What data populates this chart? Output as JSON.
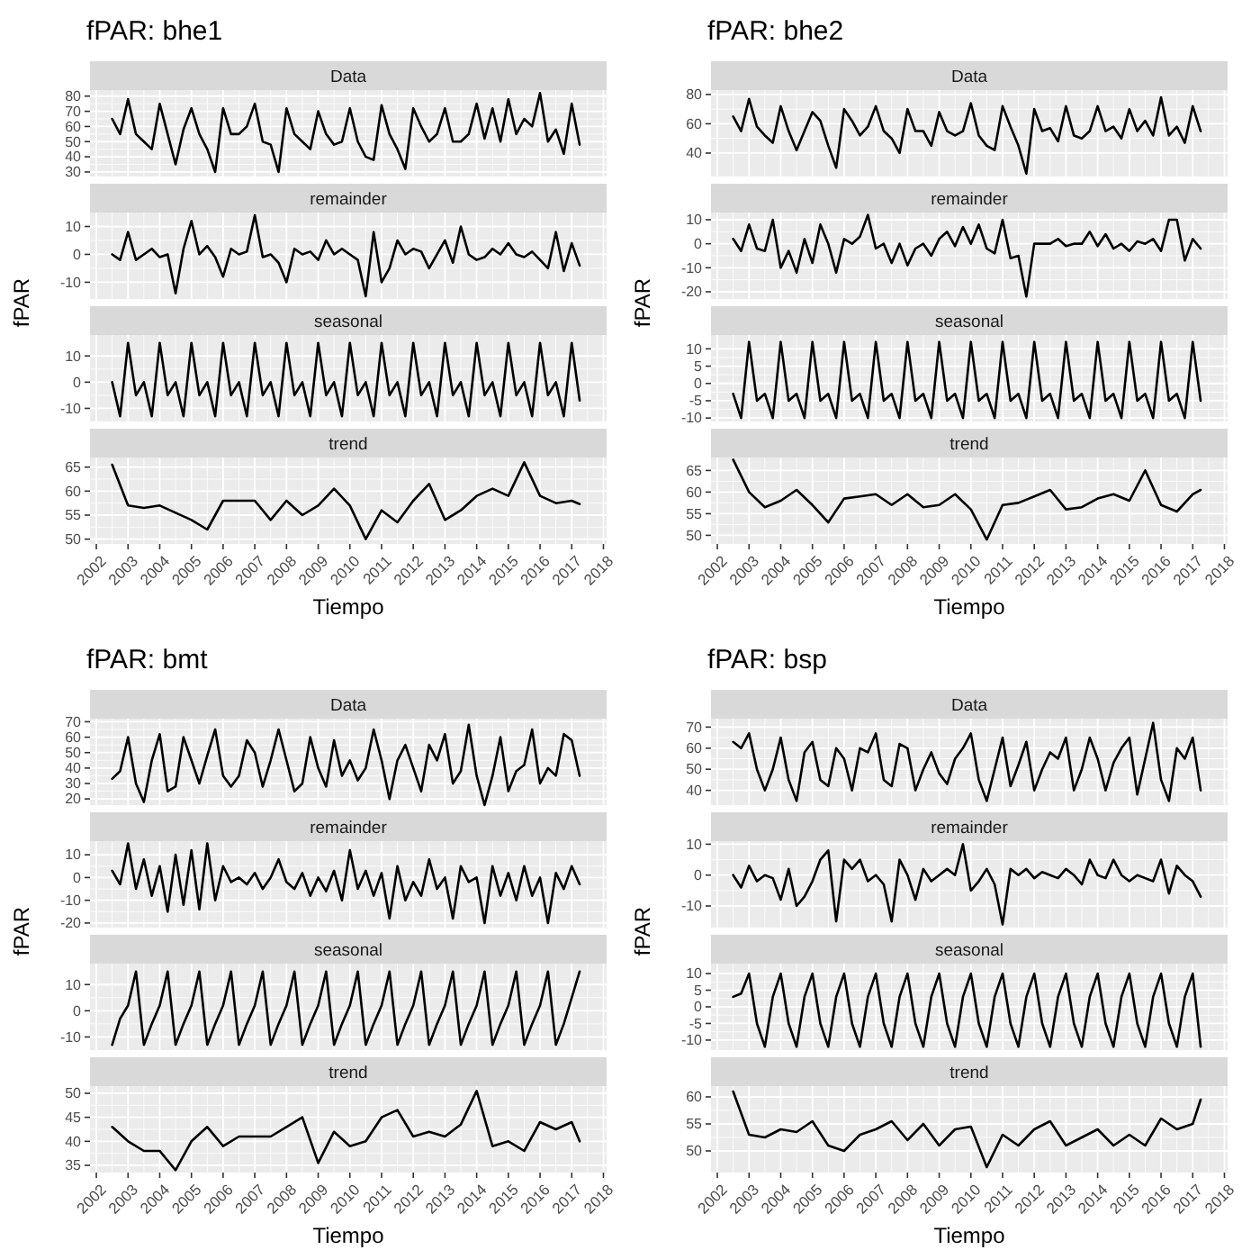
{
  "chart_data": [
    {
      "type": "line",
      "title": "fPAR: bhe1",
      "subtitle": "Data",
      "tick_labels": "y",
      "grid": true,
      "xlim": [
        2001.8,
        2018.1
      ],
      "xticks": [
        2002,
        2003,
        2004,
        2005,
        2006,
        2007,
        2008,
        2009,
        2010,
        2011,
        2012,
        2013,
        2014,
        2015,
        2016,
        2017,
        2018
      ],
      "ylim": [
        27,
        84
      ],
      "yticks": [
        30,
        40,
        50,
        60,
        70,
        80
      ],
      "x": [
        2002.5,
        2002.75,
        2003,
        2003.25,
        2003.5,
        2003.75,
        2004,
        2004.25,
        2004.5,
        2004.75,
        2005,
        2005.25,
        2005.5,
        2005.75,
        2006,
        2006.25,
        2006.5,
        2006.75,
        2007,
        2007.25,
        2007.5,
        2007.75,
        2008,
        2008.25,
        2008.5,
        2008.75,
        2009,
        2009.25,
        2009.5,
        2009.75,
        2010,
        2010.25,
        2010.5,
        2010.75,
        2011,
        2011.25,
        2011.5,
        2011.75,
        2012,
        2012.25,
        2012.5,
        2012.75,
        2013,
        2013.25,
        2013.5,
        2013.75,
        2014,
        2014.25,
        2014.5,
        2014.75,
        2015,
        2015.25,
        2015.5,
        2015.75,
        2016,
        2016.25,
        2016.5,
        2016.75,
        2017,
        2017.25
      ],
      "series": [
        {
          "color": "#000000",
          "values": [
            65,
            55,
            78,
            55,
            50,
            45,
            75,
            55,
            35,
            58,
            72,
            55,
            45,
            30,
            72,
            55,
            55,
            60,
            75,
            50,
            48,
            30,
            72,
            55,
            50,
            45,
            70,
            55,
            48,
            50,
            72,
            50,
            40,
            38,
            74,
            55,
            45,
            32,
            72,
            60,
            50,
            55,
            72,
            50,
            50,
            55,
            75,
            52,
            72,
            50,
            78,
            55,
            65,
            60,
            82,
            50,
            58,
            42,
            75,
            48
          ]
        }
      ]
    },
    {
      "type": "line",
      "subtitle": "remainder",
      "ylabel": "fPAR",
      "tick_labels": "y",
      "grid": true,
      "xlim": [
        2001.8,
        2018.1
      ],
      "xticks": [
        2002,
        2003,
        2004,
        2005,
        2006,
        2007,
        2008,
        2009,
        2010,
        2011,
        2012,
        2013,
        2014,
        2015,
        2016,
        2017,
        2018
      ],
      "ylim": [
        -16,
        15
      ],
      "yticks": [
        -10,
        0,
        10
      ],
      "x": [
        2002.5,
        2002.75,
        2003,
        2003.25,
        2003.5,
        2003.75,
        2004,
        2004.25,
        2004.5,
        2004.75,
        2005,
        2005.25,
        2005.5,
        2005.75,
        2006,
        2006.25,
        2006.5,
        2006.75,
        2007,
        2007.25,
        2007.5,
        2007.75,
        2008,
        2008.25,
        2008.5,
        2008.75,
        2009,
        2009.25,
        2009.5,
        2009.75,
        2010,
        2010.25,
        2010.5,
        2010.75,
        2011,
        2011.25,
        2011.5,
        2011.75,
        2012,
        2012.25,
        2012.5,
        2012.75,
        2013,
        2013.25,
        2013.5,
        2013.75,
        2014,
        2014.25,
        2014.5,
        2014.75,
        2015,
        2015.25,
        2015.5,
        2015.75,
        2016,
        2016.25,
        2016.5,
        2016.75,
        2017,
        2017.25
      ],
      "series": [
        {
          "color": "#000000",
          "values": [
            0,
            -2,
            8,
            -2,
            0,
            2,
            -1,
            0,
            -14,
            2,
            12,
            0,
            3,
            -1,
            -8,
            2,
            0,
            1,
            14,
            -1,
            0,
            -3,
            -10,
            2,
            0,
            1,
            -2,
            5,
            0,
            2,
            0,
            -2,
            -15,
            8,
            -10,
            -5,
            5,
            0,
            2,
            1,
            -5,
            0,
            5,
            -3,
            10,
            0,
            -2,
            -1,
            2,
            0,
            4,
            0,
            -1,
            1,
            -2,
            -5,
            8,
            -6,
            4,
            -4
          ]
        }
      ]
    },
    {
      "type": "line",
      "subtitle": "seasonal",
      "tick_labels": "y",
      "grid": true,
      "xlim": [
        2001.8,
        2018.1
      ],
      "xticks": [
        2002,
        2003,
        2004,
        2005,
        2006,
        2007,
        2008,
        2009,
        2010,
        2011,
        2012,
        2013,
        2014,
        2015,
        2016,
        2017,
        2018
      ],
      "ylim": [
        -15,
        18
      ],
      "yticks": [
        -10,
        0,
        10
      ],
      "x": [
        2002.5,
        2002.75,
        2003,
        2003.25,
        2003.5,
        2003.75,
        2004,
        2004.25,
        2004.5,
        2004.75,
        2005,
        2005.25,
        2005.5,
        2005.75,
        2006,
        2006.25,
        2006.5,
        2006.75,
        2007,
        2007.25,
        2007.5,
        2007.75,
        2008,
        2008.25,
        2008.5,
        2008.75,
        2009,
        2009.25,
        2009.5,
        2009.75,
        2010,
        2010.25,
        2010.5,
        2010.75,
        2011,
        2011.25,
        2011.5,
        2011.75,
        2012,
        2012.25,
        2012.5,
        2012.75,
        2013,
        2013.25,
        2013.5,
        2013.75,
        2014,
        2014.25,
        2014.5,
        2014.75,
        2015,
        2015.25,
        2015.5,
        2015.75,
        2016,
        2016.25,
        2016.5,
        2016.75,
        2017,
        2017.25
      ],
      "series": [
        {
          "color": "#000000",
          "values": [
            0,
            -13,
            15,
            -5,
            0,
            -13,
            15,
            -5,
            0,
            -13,
            15,
            -5,
            0,
            -13,
            15,
            -5,
            0,
            -13,
            15,
            -5,
            0,
            -13,
            15,
            -5,
            0,
            -13,
            15,
            -5,
            0,
            -13,
            15,
            -5,
            0,
            -13,
            15,
            -5,
            0,
            -13,
            15,
            -5,
            0,
            -13,
            15,
            -5,
            0,
            -13,
            15,
            -5,
            0,
            -13,
            15,
            -5,
            0,
            -13,
            15,
            -5,
            0,
            -13,
            15,
            -7
          ]
        }
      ]
    },
    {
      "type": "line",
      "subtitle": "trend",
      "xlabel": "Tiempo",
      "grid": true,
      "xlim": [
        2001.8,
        2018.1
      ],
      "xticks": [
        2002,
        2003,
        2004,
        2005,
        2006,
        2007,
        2008,
        2009,
        2010,
        2011,
        2012,
        2013,
        2014,
        2015,
        2016,
        2017,
        2018
      ],
      "ylim": [
        49,
        67
      ],
      "yticks": [
        50,
        55,
        60,
        65
      ],
      "x": [
        2002.5,
        2003,
        2003.5,
        2004,
        2004.5,
        2005,
        2005.5,
        2006,
        2006.5,
        2007,
        2007.5,
        2008,
        2008.5,
        2009,
        2009.5,
        2010,
        2010.5,
        2011,
        2011.5,
        2012,
        2012.5,
        2013,
        2013.5,
        2014,
        2014.5,
        2015,
        2015.5,
        2016,
        2016.5,
        2017,
        2017.25
      ],
      "series": [
        {
          "color": "#000000",
          "values": [
            65.5,
            57,
            56.5,
            57,
            55.5,
            54,
            52,
            58,
            58,
            58,
            54,
            58,
            55,
            57,
            60.5,
            57,
            50,
            56,
            53.5,
            58,
            61.5,
            54,
            56,
            59,
            60.5,
            59,
            66,
            59,
            57.5,
            58,
            57.3
          ]
        }
      ]
    },
    {
      "type": "line",
      "title": "fPAR: bhe2",
      "subtitle": "Data",
      "tick_labels": "y",
      "grid": true,
      "xlim": [
        2001.8,
        2018.1
      ],
      "xticks": [
        2002,
        2003,
        2004,
        2005,
        2006,
        2007,
        2008,
        2009,
        2010,
        2011,
        2012,
        2013,
        2014,
        2015,
        2016,
        2017,
        2018
      ],
      "ylim": [
        24,
        83
      ],
      "yticks": [
        40,
        60,
        80
      ],
      "x": [
        2002.5,
        2002.75,
        2003,
        2003.25,
        2003.5,
        2003.75,
        2004,
        2004.25,
        2004.5,
        2004.75,
        2005,
        2005.25,
        2005.5,
        2005.75,
        2006,
        2006.25,
        2006.5,
        2006.75,
        2007,
        2007.25,
        2007.5,
        2007.75,
        2008,
        2008.25,
        2008.5,
        2008.75,
        2009,
        2009.25,
        2009.5,
        2009.75,
        2010,
        2010.25,
        2010.5,
        2010.75,
        2011,
        2011.25,
        2011.5,
        2011.75,
        2012,
        2012.25,
        2012.5,
        2012.75,
        2013,
        2013.25,
        2013.5,
        2013.75,
        2014,
        2014.25,
        2014.5,
        2014.75,
        2015,
        2015.25,
        2015.5,
        2015.75,
        2016,
        2016.25,
        2016.5,
        2016.75,
        2017,
        2017.25
      ],
      "series": [
        {
          "color": "#000000",
          "values": [
            65,
            55,
            77,
            58,
            52,
            47,
            72,
            55,
            42,
            55,
            68,
            62,
            45,
            30,
            70,
            62,
            52,
            58,
            72,
            55,
            50,
            40,
            70,
            55,
            55,
            45,
            68,
            55,
            52,
            55,
            74,
            52,
            45,
            42,
            72,
            58,
            45,
            26,
            70,
            55,
            57,
            48,
            72,
            52,
            50,
            55,
            72,
            55,
            58,
            50,
            70,
            55,
            62,
            52,
            78,
            52,
            58,
            47,
            72,
            55
          ]
        }
      ]
    },
    {
      "type": "line",
      "subtitle": "remainder",
      "ylabel": "fPAR",
      "tick_labels": "y",
      "grid": true,
      "xlim": [
        2001.8,
        2018.1
      ],
      "xticks": [
        2002,
        2003,
        2004,
        2005,
        2006,
        2007,
        2008,
        2009,
        2010,
        2011,
        2012,
        2013,
        2014,
        2015,
        2016,
        2017,
        2018
      ],
      "ylim": [
        -23,
        13
      ],
      "yticks": [
        -20,
        -10,
        0,
        10
      ],
      "x": [
        2002.5,
        2002.75,
        2003,
        2003.25,
        2003.5,
        2003.75,
        2004,
        2004.25,
        2004.5,
        2004.75,
        2005,
        2005.25,
        2005.5,
        2005.75,
        2006,
        2006.25,
        2006.5,
        2006.75,
        2007,
        2007.25,
        2007.5,
        2007.75,
        2008,
        2008.25,
        2008.5,
        2008.75,
        2009,
        2009.25,
        2009.5,
        2009.75,
        2010,
        2010.25,
        2010.5,
        2010.75,
        2011,
        2011.25,
        2011.5,
        2011.75,
        2012,
        2012.25,
        2012.5,
        2012.75,
        2013,
        2013.25,
        2013.5,
        2013.75,
        2014,
        2014.25,
        2014.5,
        2014.75,
        2015,
        2015.25,
        2015.5,
        2015.75,
        2016,
        2016.25,
        2016.5,
        2016.75,
        2017,
        2017.25
      ],
      "series": [
        {
          "color": "#000000",
          "values": [
            2,
            -3,
            8,
            -2,
            -3,
            10,
            -10,
            -3,
            -12,
            2,
            -8,
            8,
            0,
            -12,
            2,
            0,
            3,
            12,
            -2,
            0,
            -8,
            0,
            -9,
            -2,
            0,
            -5,
            2,
            5,
            -1,
            7,
            0,
            8,
            -2,
            -4,
            10,
            -6,
            -5,
            -22,
            0,
            0,
            0,
            2,
            -1,
            0,
            0,
            5,
            -1,
            4,
            -2,
            0,
            -3,
            1,
            0,
            2,
            -3,
            10,
            10,
            -7,
            2,
            -2
          ]
        }
      ]
    },
    {
      "type": "line",
      "subtitle": "seasonal",
      "tick_labels": "y",
      "grid": true,
      "xlim": [
        2001.8,
        2018.1
      ],
      "xticks": [
        2002,
        2003,
        2004,
        2005,
        2006,
        2007,
        2008,
        2009,
        2010,
        2011,
        2012,
        2013,
        2014,
        2015,
        2016,
        2017,
        2018
      ],
      "ylim": [
        -11,
        14
      ],
      "yticks": [
        -10,
        -5,
        0,
        5,
        10
      ],
      "x": [
        2002.5,
        2002.75,
        2003,
        2003.25,
        2003.5,
        2003.75,
        2004,
        2004.25,
        2004.5,
        2004.75,
        2005,
        2005.25,
        2005.5,
        2005.75,
        2006,
        2006.25,
        2006.5,
        2006.75,
        2007,
        2007.25,
        2007.5,
        2007.75,
        2008,
        2008.25,
        2008.5,
        2008.75,
        2009,
        2009.25,
        2009.5,
        2009.75,
        2010,
        2010.25,
        2010.5,
        2010.75,
        2011,
        2011.25,
        2011.5,
        2011.75,
        2012,
        2012.25,
        2012.5,
        2012.75,
        2013,
        2013.25,
        2013.5,
        2013.75,
        2014,
        2014.25,
        2014.5,
        2014.75,
        2015,
        2015.25,
        2015.5,
        2015.75,
        2016,
        2016.25,
        2016.5,
        2016.75,
        2017,
        2017.25
      ],
      "series": [
        {
          "color": "#000000",
          "values": [
            -3,
            -10,
            12,
            -5,
            -3,
            -10,
            12,
            -5,
            -3,
            -10,
            12,
            -5,
            -3,
            -10,
            12,
            -5,
            -3,
            -10,
            12,
            -5,
            -3,
            -10,
            12,
            -5,
            -3,
            -10,
            12,
            -5,
            -3,
            -10,
            12,
            -5,
            -3,
            -10,
            12,
            -5,
            -3,
            -10,
            12,
            -5,
            -3,
            -10,
            12,
            -5,
            -3,
            -10,
            12,
            -5,
            -3,
            -10,
            12,
            -5,
            -3,
            -10,
            12,
            -5,
            -3,
            -10,
            12,
            -5
          ]
        }
      ]
    },
    {
      "type": "line",
      "subtitle": "trend",
      "xlabel": "Tiempo",
      "grid": true,
      "xlim": [
        2001.8,
        2018.1
      ],
      "xticks": [
        2002,
        2003,
        2004,
        2005,
        2006,
        2007,
        2008,
        2009,
        2010,
        2011,
        2012,
        2013,
        2014,
        2015,
        2016,
        2017,
        2018
      ],
      "ylim": [
        48,
        68
      ],
      "yticks": [
        50,
        55,
        60,
        65
      ],
      "x": [
        2002.5,
        2003,
        2003.5,
        2004,
        2004.5,
        2005,
        2005.5,
        2006,
        2006.5,
        2007,
        2007.5,
        2008,
        2008.5,
        2009,
        2009.5,
        2010,
        2010.5,
        2011,
        2011.5,
        2012,
        2012.5,
        2013,
        2013.5,
        2014,
        2014.5,
        2015,
        2015.5,
        2016,
        2016.5,
        2017,
        2017.25
      ],
      "series": [
        {
          "color": "#000000",
          "values": [
            67.5,
            60,
            56.5,
            58,
            60.5,
            57,
            53,
            58.5,
            59,
            59.5,
            57,
            59.5,
            56.5,
            57,
            59.5,
            56,
            49,
            57,
            57.5,
            59,
            60.5,
            56,
            56.5,
            58.5,
            59.5,
            58,
            65,
            57,
            55.5,
            59.5,
            60.5
          ]
        }
      ]
    },
    {
      "type": "line",
      "title": "fPAR: bmt",
      "subtitle": "Data",
      "tick_labels": "y",
      "grid": true,
      "xlim": [
        2001.8,
        2018.1
      ],
      "xticks": [
        2002,
        2003,
        2004,
        2005,
        2006,
        2007,
        2008,
        2009,
        2010,
        2011,
        2012,
        2013,
        2014,
        2015,
        2016,
        2017,
        2018
      ],
      "ylim": [
        16,
        72
      ],
      "yticks": [
        20,
        30,
        40,
        50,
        60,
        70
      ],
      "x": [
        2002.5,
        2002.75,
        2003,
        2003.25,
        2003.5,
        2003.75,
        2004,
        2004.25,
        2004.5,
        2004.75,
        2005,
        2005.25,
        2005.5,
        2005.75,
        2006,
        2006.25,
        2006.5,
        2006.75,
        2007,
        2007.25,
        2007.5,
        2007.75,
        2008,
        2008.25,
        2008.5,
        2008.75,
        2009,
        2009.25,
        2009.5,
        2009.75,
        2010,
        2010.25,
        2010.5,
        2010.75,
        2011,
        2011.25,
        2011.5,
        2011.75,
        2012,
        2012.25,
        2012.5,
        2012.75,
        2013,
        2013.25,
        2013.5,
        2013.75,
        2014,
        2014.25,
        2014.5,
        2014.75,
        2015,
        2015.25,
        2015.5,
        2015.75,
        2016,
        2016.25,
        2016.5,
        2016.75,
        2017,
        2017.25
      ],
      "series": [
        {
          "color": "#000000",
          "values": [
            33,
            38,
            60,
            30,
            18,
            45,
            62,
            25,
            28,
            60,
            45,
            30,
            48,
            65,
            35,
            28,
            35,
            58,
            50,
            28,
            45,
            65,
            45,
            25,
            30,
            60,
            40,
            28,
            58,
            35,
            45,
            32,
            40,
            65,
            45,
            20,
            45,
            55,
            40,
            25,
            55,
            45,
            62,
            30,
            38,
            68,
            35,
            16,
            35,
            60,
            25,
            38,
            42,
            65,
            30,
            40,
            35,
            62,
            58,
            35
          ]
        }
      ]
    },
    {
      "type": "line",
      "subtitle": "remainder",
      "ylabel": "fPAR",
      "tick_labels": "y",
      "grid": true,
      "xlim": [
        2001.8,
        2018.1
      ],
      "xticks": [
        2002,
        2003,
        2004,
        2005,
        2006,
        2007,
        2008,
        2009,
        2010,
        2011,
        2012,
        2013,
        2014,
        2015,
        2016,
        2017,
        2018
      ],
      "ylim": [
        -22,
        16
      ],
      "yticks": [
        -20,
        -10,
        0,
        10
      ],
      "x": [
        2002.5,
        2002.75,
        2003,
        2003.25,
        2003.5,
        2003.75,
        2004,
        2004.25,
        2004.5,
        2004.75,
        2005,
        2005.25,
        2005.5,
        2005.75,
        2006,
        2006.25,
        2006.5,
        2006.75,
        2007,
        2007.25,
        2007.5,
        2007.75,
        2008,
        2008.25,
        2008.5,
        2008.75,
        2009,
        2009.25,
        2009.5,
        2009.75,
        2010,
        2010.25,
        2010.5,
        2010.75,
        2011,
        2011.25,
        2011.5,
        2011.75,
        2012,
        2012.25,
        2012.5,
        2012.75,
        2013,
        2013.25,
        2013.5,
        2013.75,
        2014,
        2014.25,
        2014.5,
        2014.75,
        2015,
        2015.25,
        2015.5,
        2015.75,
        2016,
        2016.25,
        2016.5,
        2016.75,
        2017,
        2017.25
      ],
      "series": [
        {
          "color": "#000000",
          "values": [
            3,
            -3,
            15,
            -5,
            8,
            -8,
            5,
            -15,
            10,
            -12,
            12,
            -14,
            15,
            -10,
            5,
            -2,
            0,
            -3,
            2,
            -5,
            0,
            8,
            -2,
            -5,
            2,
            -8,
            0,
            -6,
            3,
            -10,
            12,
            -5,
            3,
            -8,
            2,
            -18,
            5,
            -10,
            -2,
            -8,
            8,
            -5,
            0,
            -18,
            5,
            -2,
            0,
            -20,
            5,
            -8,
            2,
            -10,
            5,
            -8,
            0,
            -20,
            2,
            -5,
            5,
            -3
          ]
        }
      ]
    },
    {
      "type": "line",
      "subtitle": "seasonal",
      "tick_labels": "y",
      "grid": true,
      "xlim": [
        2001.8,
        2018.1
      ],
      "xticks": [
        2002,
        2003,
        2004,
        2005,
        2006,
        2007,
        2008,
        2009,
        2010,
        2011,
        2012,
        2013,
        2014,
        2015,
        2016,
        2017,
        2018
      ],
      "ylim": [
        -15,
        18
      ],
      "yticks": [
        -10,
        0,
        10
      ],
      "x": [
        2002.5,
        2002.75,
        2003,
        2003.25,
        2003.5,
        2003.75,
        2004,
        2004.25,
        2004.5,
        2004.75,
        2005,
        2005.25,
        2005.5,
        2005.75,
        2006,
        2006.25,
        2006.5,
        2006.75,
        2007,
        2007.25,
        2007.5,
        2007.75,
        2008,
        2008.25,
        2008.5,
        2008.75,
        2009,
        2009.25,
        2009.5,
        2009.75,
        2010,
        2010.25,
        2010.5,
        2010.75,
        2011,
        2011.25,
        2011.5,
        2011.75,
        2012,
        2012.25,
        2012.5,
        2012.75,
        2013,
        2013.25,
        2013.5,
        2013.75,
        2014,
        2014.25,
        2014.5,
        2014.75,
        2015,
        2015.25,
        2015.5,
        2015.75,
        2016,
        2016.25,
        2016.5,
        2016.75,
        2017,
        2017.25
      ],
      "series": [
        {
          "color": "#000000",
          "values": [
            -13,
            -3,
            2,
            15,
            -13,
            -5,
            2,
            15,
            -13,
            -5,
            2,
            15,
            -13,
            -5,
            2,
            15,
            -13,
            -5,
            2,
            15,
            -13,
            -5,
            2,
            15,
            -13,
            -5,
            2,
            15,
            -13,
            -5,
            2,
            15,
            -13,
            -5,
            2,
            15,
            -13,
            -5,
            2,
            15,
            -13,
            -5,
            2,
            15,
            -13,
            -5,
            2,
            15,
            -13,
            -5,
            2,
            15,
            -13,
            -5,
            2,
            15,
            -13,
            -5,
            5,
            15
          ]
        }
      ]
    },
    {
      "type": "line",
      "subtitle": "trend",
      "xlabel": "Tiempo",
      "grid": true,
      "xlim": [
        2001.8,
        2018.1
      ],
      "xticks": [
        2002,
        2003,
        2004,
        2005,
        2006,
        2007,
        2008,
        2009,
        2010,
        2011,
        2012,
        2013,
        2014,
        2015,
        2016,
        2017,
        2018
      ],
      "ylim": [
        33.5,
        51.5
      ],
      "yticks": [
        35,
        40,
        45,
        50
      ],
      "x": [
        2002.5,
        2003,
        2003.5,
        2004,
        2004.5,
        2005,
        2005.5,
        2006,
        2006.5,
        2007,
        2007.5,
        2008,
        2008.5,
        2009,
        2009.5,
        2010,
        2010.5,
        2011,
        2011.5,
        2012,
        2012.5,
        2013,
        2013.5,
        2014,
        2014.5,
        2015,
        2015.5,
        2016,
        2016.5,
        2017,
        2017.25
      ],
      "series": [
        {
          "color": "#000000",
          "values": [
            43,
            40,
            38,
            38,
            34,
            40,
            43,
            39,
            41,
            41,
            41,
            43,
            45,
            35.5,
            42,
            39,
            40,
            45,
            46.5,
            41,
            42,
            41,
            43.5,
            50.5,
            39,
            40,
            38,
            44,
            42.5,
            44,
            40
          ]
        }
      ]
    },
    {
      "type": "line",
      "title": "fPAR: bsp",
      "subtitle": "Data",
      "tick_labels": "y",
      "grid": true,
      "xlim": [
        2001.8,
        2018.1
      ],
      "xticks": [
        2002,
        2003,
        2004,
        2005,
        2006,
        2007,
        2008,
        2009,
        2010,
        2011,
        2012,
        2013,
        2014,
        2015,
        2016,
        2017,
        2018
      ],
      "ylim": [
        33,
        74
      ],
      "yticks": [
        40,
        50,
        60,
        70
      ],
      "x": [
        2002.5,
        2002.75,
        2003,
        2003.25,
        2003.5,
        2003.75,
        2004,
        2004.25,
        2004.5,
        2004.75,
        2005,
        2005.25,
        2005.5,
        2005.75,
        2006,
        2006.25,
        2006.5,
        2006.75,
        2007,
        2007.25,
        2007.5,
        2007.75,
        2008,
        2008.25,
        2008.5,
        2008.75,
        2009,
        2009.25,
        2009.5,
        2009.75,
        2010,
        2010.25,
        2010.5,
        2010.75,
        2011,
        2011.25,
        2011.5,
        2011.75,
        2012,
        2012.25,
        2012.5,
        2012.75,
        2013,
        2013.25,
        2013.5,
        2013.75,
        2014,
        2014.25,
        2014.5,
        2014.75,
        2015,
        2015.25,
        2015.5,
        2015.75,
        2016,
        2016.25,
        2016.5,
        2016.75,
        2017,
        2017.25
      ],
      "series": [
        {
          "color": "#000000",
          "values": [
            63,
            60,
            67,
            50,
            40,
            50,
            65,
            45,
            35,
            58,
            63,
            45,
            42,
            60,
            55,
            40,
            60,
            58,
            67,
            45,
            42,
            62,
            60,
            40,
            50,
            58,
            48,
            43,
            55,
            60,
            67,
            45,
            35,
            50,
            65,
            42,
            52,
            63,
            40,
            50,
            58,
            55,
            65,
            40,
            50,
            65,
            55,
            40,
            53,
            60,
            65,
            38,
            55,
            72,
            45,
            35,
            60,
            55,
            65,
            40
          ]
        }
      ]
    },
    {
      "type": "line",
      "subtitle": "remainder",
      "ylabel": "fPAR",
      "tick_labels": "y",
      "grid": true,
      "xlim": [
        2001.8,
        2018.1
      ],
      "xticks": [
        2002,
        2003,
        2004,
        2005,
        2006,
        2007,
        2008,
        2009,
        2010,
        2011,
        2012,
        2013,
        2014,
        2015,
        2016,
        2017,
        2018
      ],
      "ylim": [
        -17,
        11
      ],
      "yticks": [
        -10,
        0,
        10
      ],
      "x": [
        2002.5,
        2002.75,
        2003,
        2003.25,
        2003.5,
        2003.75,
        2004,
        2004.25,
        2004.5,
        2004.75,
        2005,
        2005.25,
        2005.5,
        2005.75,
        2006,
        2006.25,
        2006.5,
        2006.75,
        2007,
        2007.25,
        2007.5,
        2007.75,
        2008,
        2008.25,
        2008.5,
        2008.75,
        2009,
        2009.25,
        2009.5,
        2009.75,
        2010,
        2010.25,
        2010.5,
        2010.75,
        2011,
        2011.25,
        2011.5,
        2011.75,
        2012,
        2012.25,
        2012.5,
        2012.75,
        2013,
        2013.25,
        2013.5,
        2013.75,
        2014,
        2014.25,
        2014.5,
        2014.75,
        2015,
        2015.25,
        2015.5,
        2015.75,
        2016,
        2016.25,
        2016.5,
        2016.75,
        2017,
        2017.25
      ],
      "series": [
        {
          "color": "#000000",
          "values": [
            0,
            -4,
            3,
            -2,
            0,
            -1,
            -8,
            2,
            -10,
            -7,
            -2,
            5,
            8,
            -15,
            5,
            2,
            5,
            -2,
            0,
            -3,
            -15,
            5,
            0,
            -8,
            2,
            -2,
            0,
            2,
            0,
            10,
            -5,
            -2,
            2,
            -3,
            -16,
            2,
            0,
            2,
            -1,
            1,
            0,
            -1,
            2,
            0,
            -3,
            5,
            0,
            -1,
            5,
            0,
            -2,
            0,
            -1,
            -2,
            5,
            -6,
            3,
            0,
            -2,
            -7
          ]
        }
      ]
    },
    {
      "type": "line",
      "subtitle": "seasonal",
      "tick_labels": "y",
      "grid": true,
      "xlim": [
        2001.8,
        2018.1
      ],
      "xticks": [
        2002,
        2003,
        2004,
        2005,
        2006,
        2007,
        2008,
        2009,
        2010,
        2011,
        2012,
        2013,
        2014,
        2015,
        2016,
        2017,
        2018
      ],
      "ylim": [
        -13,
        13
      ],
      "yticks": [
        -10,
        -5,
        0,
        5,
        10
      ],
      "x": [
        2002.5,
        2002.75,
        2003,
        2003.25,
        2003.5,
        2003.75,
        2004,
        2004.25,
        2004.5,
        2004.75,
        2005,
        2005.25,
        2005.5,
        2005.75,
        2006,
        2006.25,
        2006.5,
        2006.75,
        2007,
        2007.25,
        2007.5,
        2007.75,
        2008,
        2008.25,
        2008.5,
        2008.75,
        2009,
        2009.25,
        2009.5,
        2009.75,
        2010,
        2010.25,
        2010.5,
        2010.75,
        2011,
        2011.25,
        2011.5,
        2011.75,
        2012,
        2012.25,
        2012.5,
        2012.75,
        2013,
        2013.25,
        2013.5,
        2013.75,
        2014,
        2014.25,
        2014.5,
        2014.75,
        2015,
        2015.25,
        2015.5,
        2015.75,
        2016,
        2016.25,
        2016.5,
        2016.75,
        2017,
        2017.25
      ],
      "series": [
        {
          "color": "#000000",
          "values": [
            3,
            4,
            10,
            -5,
            -12,
            3,
            10,
            -5,
            -12,
            3,
            10,
            -5,
            -12,
            3,
            10,
            -5,
            -12,
            3,
            10,
            -5,
            -12,
            3,
            10,
            -5,
            -12,
            3,
            10,
            -5,
            -12,
            3,
            10,
            -5,
            -12,
            3,
            10,
            -5,
            -12,
            3,
            10,
            -5,
            -12,
            3,
            10,
            -5,
            -12,
            3,
            10,
            -5,
            -12,
            3,
            10,
            -5,
            -12,
            3,
            10,
            -5,
            -12,
            3,
            10,
            -12
          ]
        }
      ]
    },
    {
      "type": "line",
      "subtitle": "trend",
      "xlabel": "Tiempo",
      "grid": true,
      "xlim": [
        2001.8,
        2018.1
      ],
      "xticks": [
        2002,
        2003,
        2004,
        2005,
        2006,
        2007,
        2008,
        2009,
        2010,
        2011,
        2012,
        2013,
        2014,
        2015,
        2016,
        2017,
        2018
      ],
      "ylim": [
        46,
        62
      ],
      "yticks": [
        50,
        55,
        60
      ],
      "x": [
        2002.5,
        2003,
        2003.5,
        2004,
        2004.5,
        2005,
        2005.5,
        2006,
        2006.5,
        2007,
        2007.5,
        2008,
        2008.5,
        2009,
        2009.5,
        2010,
        2010.5,
        2011,
        2011.5,
        2012,
        2012.5,
        2013,
        2013.5,
        2014,
        2014.5,
        2015,
        2015.5,
        2016,
        2016.5,
        2017,
        2017.25
      ],
      "series": [
        {
          "color": "#000000",
          "values": [
            61,
            53,
            52.5,
            54,
            53.5,
            55.5,
            51,
            50,
            53,
            54,
            55.5,
            52,
            55,
            51,
            54,
            54.5,
            47,
            53,
            51,
            54,
            55.5,
            51,
            52.5,
            54,
            51,
            53,
            51,
            56,
            54,
            55,
            59.5
          ]
        }
      ]
    }
  ]
}
